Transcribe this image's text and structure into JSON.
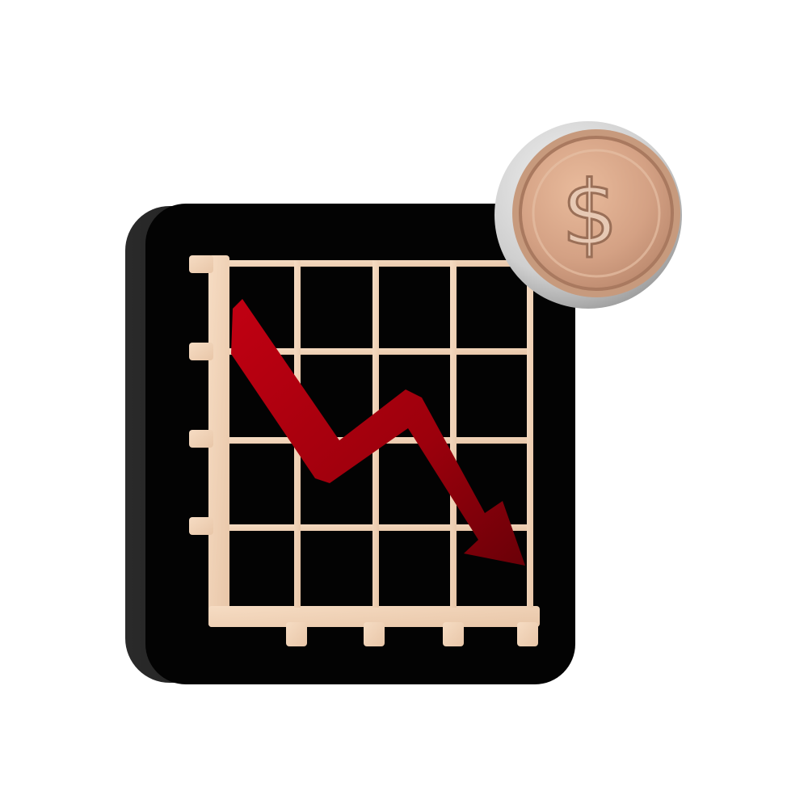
{
  "illustration": {
    "subject": "declining-chart-with-dollar-coin",
    "icons": [
      "chart-board-icon",
      "down-trend-arrow-icon",
      "dollar-coin-icon"
    ],
    "colors": {
      "background": "#ffffff",
      "board": "#050505",
      "board_edge": "#1c1c1c",
      "grid": "#f0d2b6",
      "grid_shadow": "#c9a88a",
      "arrow": "#a4000c",
      "arrow_dark": "#6a0008",
      "coin_outer": "#d9d9d9",
      "coin_face": "#d9a98b",
      "coin_rim": "#b07f64"
    }
  },
  "coin": {
    "symbol": "$"
  }
}
